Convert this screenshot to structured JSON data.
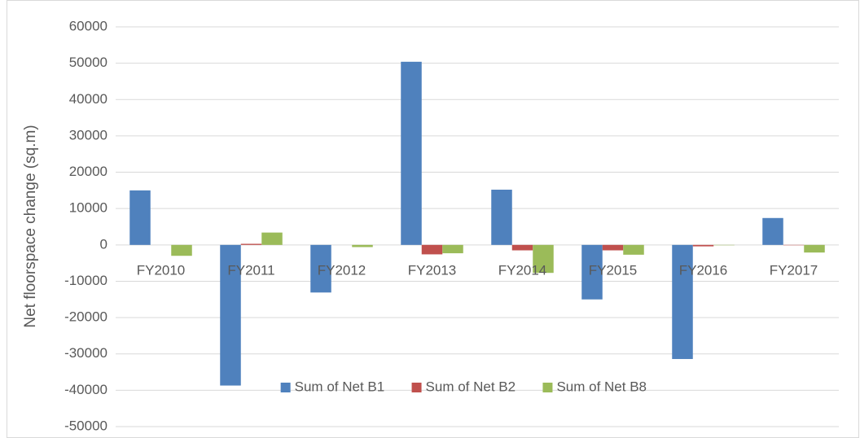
{
  "chart_data": {
    "type": "bar",
    "y_label": "Net floorspace change (sq.m)",
    "categories": [
      "FY2010",
      "FY2011",
      "FY2012",
      "FY2013",
      "FY2014",
      "FY2015",
      "FY2016",
      "FY2017"
    ],
    "series": [
      {
        "name": "Sum of Net B1",
        "color": "#4f81bd",
        "values": [
          15000,
          -38700,
          -13100,
          50400,
          15200,
          -15000,
          -31400,
          7400
        ]
      },
      {
        "name": "Sum of Net B2",
        "color": "#c0504d",
        "values": [
          0,
          300,
          0,
          -2600,
          -1500,
          -1500,
          -400,
          -100
        ]
      },
      {
        "name": "Sum of Net B8",
        "color": "#9bbb59",
        "values": [
          -3000,
          3400,
          -600,
          -2300,
          -7700,
          -2700,
          -100,
          -2100
        ]
      }
    ],
    "ylim": [
      -50000,
      60000
    ],
    "yticks": [
      -50000,
      -40000,
      -30000,
      -20000,
      -10000,
      0,
      10000,
      20000,
      30000,
      40000,
      50000,
      60000
    ],
    "grid": true,
    "legend": "bottom"
  }
}
